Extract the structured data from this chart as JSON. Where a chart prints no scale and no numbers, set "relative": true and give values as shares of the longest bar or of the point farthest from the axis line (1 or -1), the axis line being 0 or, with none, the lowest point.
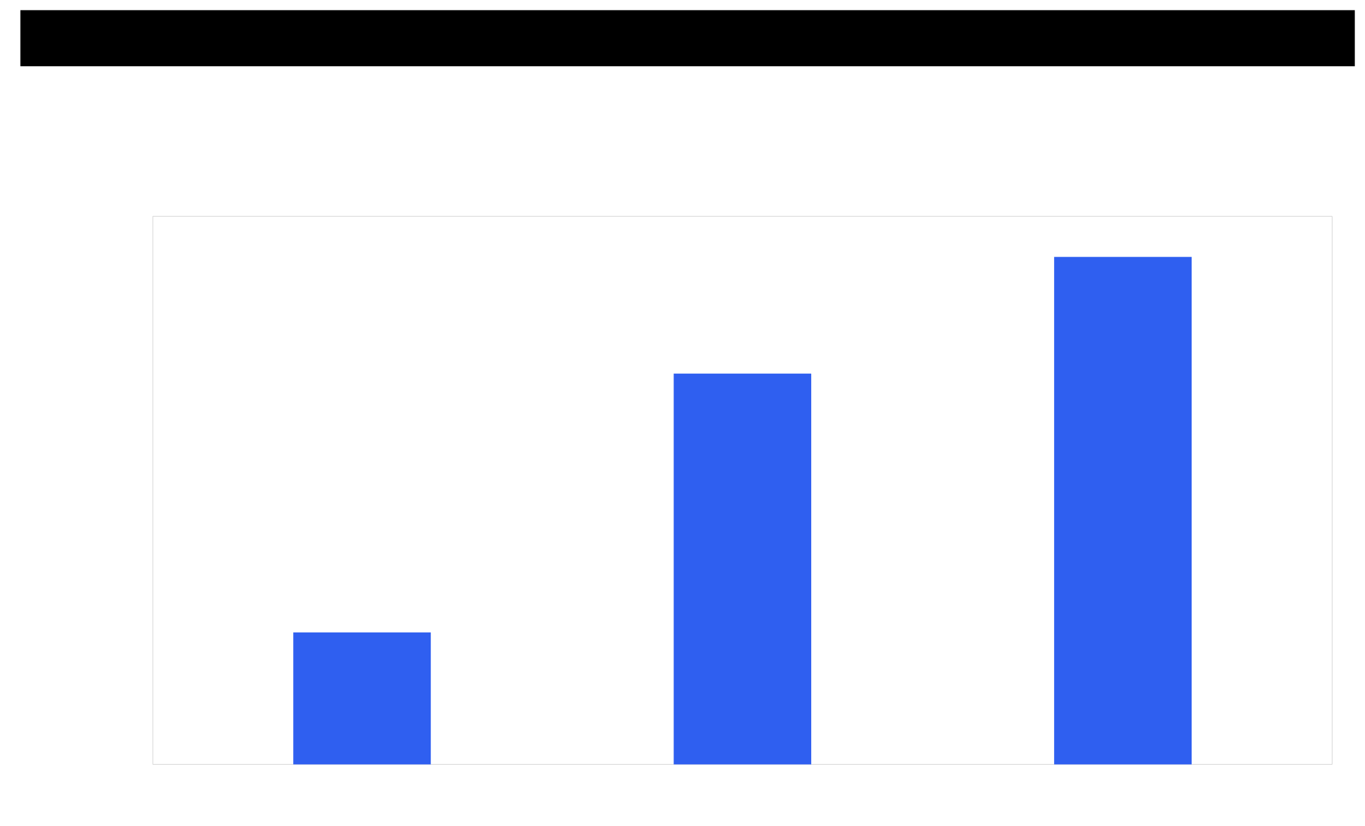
{
  "chart_data": {
    "type": "bar",
    "relative": true,
    "categories": [
      null,
      null,
      null
    ],
    "values": [
      0.26,
      0.77,
      1
    ],
    "color": "#2f5ff0"
  }
}
